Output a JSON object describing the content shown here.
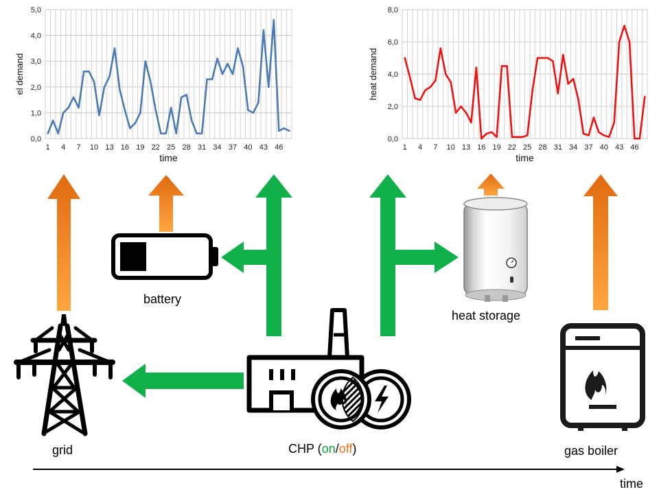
{
  "chart_data": [
    {
      "type": "line",
      "ylabel": "el demand",
      "xlabel": "time",
      "ylim": [
        0,
        5
      ],
      "yticks": [
        "0,0",
        "1,0",
        "2,0",
        "3,0",
        "4,0",
        "5,0"
      ],
      "xticks": [
        "1",
        "4",
        "7",
        "10",
        "13",
        "16",
        "19",
        "22",
        "25",
        "28",
        "31",
        "34",
        "37",
        "40",
        "43",
        "46"
      ],
      "grid": true,
      "series": [
        {
          "color": "#4a7ab4",
          "x": [
            1,
            2,
            3,
            4,
            5,
            6,
            7,
            8,
            9,
            10,
            11,
            12,
            13,
            14,
            15,
            16,
            17,
            18,
            19,
            20,
            21,
            22,
            23,
            24,
            25,
            26,
            27,
            28,
            29,
            30,
            31,
            32,
            33,
            34,
            35,
            36,
            37,
            38,
            39,
            40,
            41,
            42,
            43,
            44,
            45,
            46,
            47,
            48
          ],
          "values": [
            0.2,
            0.7,
            0.2,
            1.0,
            1.2,
            1.6,
            1.2,
            2.6,
            2.6,
            2.2,
            0.9,
            2.0,
            2.4,
            3.5,
            1.9,
            1.1,
            0.4,
            0.6,
            1.0,
            3.0,
            2.2,
            1.1,
            0.2,
            0.2,
            1.2,
            0.2,
            1.6,
            1.7,
            0.7,
            0.2,
            0.2,
            2.3,
            2.3,
            3.1,
            2.5,
            2.9,
            2.5,
            3.5,
            2.8,
            1.1,
            1.0,
            1.4,
            4.2,
            2.0,
            4.6,
            0.3,
            0.4,
            0.3
          ]
        }
      ]
    },
    {
      "type": "line",
      "ylabel": "heat demand",
      "xlabel": "time",
      "ylim": [
        0,
        8
      ],
      "yticks": [
        "0,0",
        "2,0",
        "4,0",
        "6,0",
        "8,0"
      ],
      "xticks": [
        "1",
        "4",
        "7",
        "10",
        "13",
        "16",
        "19",
        "22",
        "25",
        "28",
        "31",
        "34",
        "37",
        "40",
        "43",
        "46"
      ],
      "grid": true,
      "series": [
        {
          "color": "#ee1111",
          "x": [
            1,
            2,
            3,
            4,
            5,
            6,
            7,
            8,
            9,
            10,
            11,
            12,
            13,
            14,
            15,
            16,
            17,
            18,
            19,
            20,
            21,
            22,
            23,
            24,
            25,
            26,
            27,
            28,
            29,
            30,
            31,
            32,
            33,
            34,
            35,
            36,
            37,
            38,
            39,
            40,
            41,
            42,
            43,
            44,
            45,
            46,
            47,
            48
          ],
          "values": [
            5.0,
            3.8,
            2.5,
            2.4,
            3.0,
            3.2,
            3.6,
            5.6,
            4.0,
            3.5,
            1.6,
            2.0,
            1.6,
            1.0,
            4.4,
            0.0,
            0.3,
            0.4,
            0.1,
            4.5,
            4.5,
            0.1,
            0.1,
            0.1,
            0.2,
            3.0,
            5.0,
            5.0,
            5.0,
            4.8,
            2.8,
            5.2,
            3.4,
            3.7,
            2.4,
            0.3,
            0.2,
            1.3,
            0.4,
            0.2,
            0.1,
            1.0,
            6.0,
            7.0,
            6.0,
            0.0,
            0.0,
            2.6
          ]
        }
      ]
    }
  ],
  "labels": {
    "battery": "battery",
    "heat_storage": "heat storage",
    "grid": "grid",
    "gas_boiler": "gas boiler",
    "chp_prefix": "CHP (",
    "chp_on": "on",
    "chp_slash": "/",
    "chp_off": "off",
    "chp_suffix": ")",
    "time_axis": "time"
  },
  "colors": {
    "green_arrow": "#12b04a",
    "orange_arrow": "#f0902a",
    "on_text": "#13a03c",
    "off_text": "#e8761e",
    "line_el": "#4a7ab4",
    "line_heat": "#ee1111"
  },
  "icons": [
    "transmission-tower-icon",
    "battery-icon",
    "factory-icon",
    "flame-icon",
    "lightning-icon",
    "water-heater-icon",
    "gas-boiler-icon"
  ]
}
